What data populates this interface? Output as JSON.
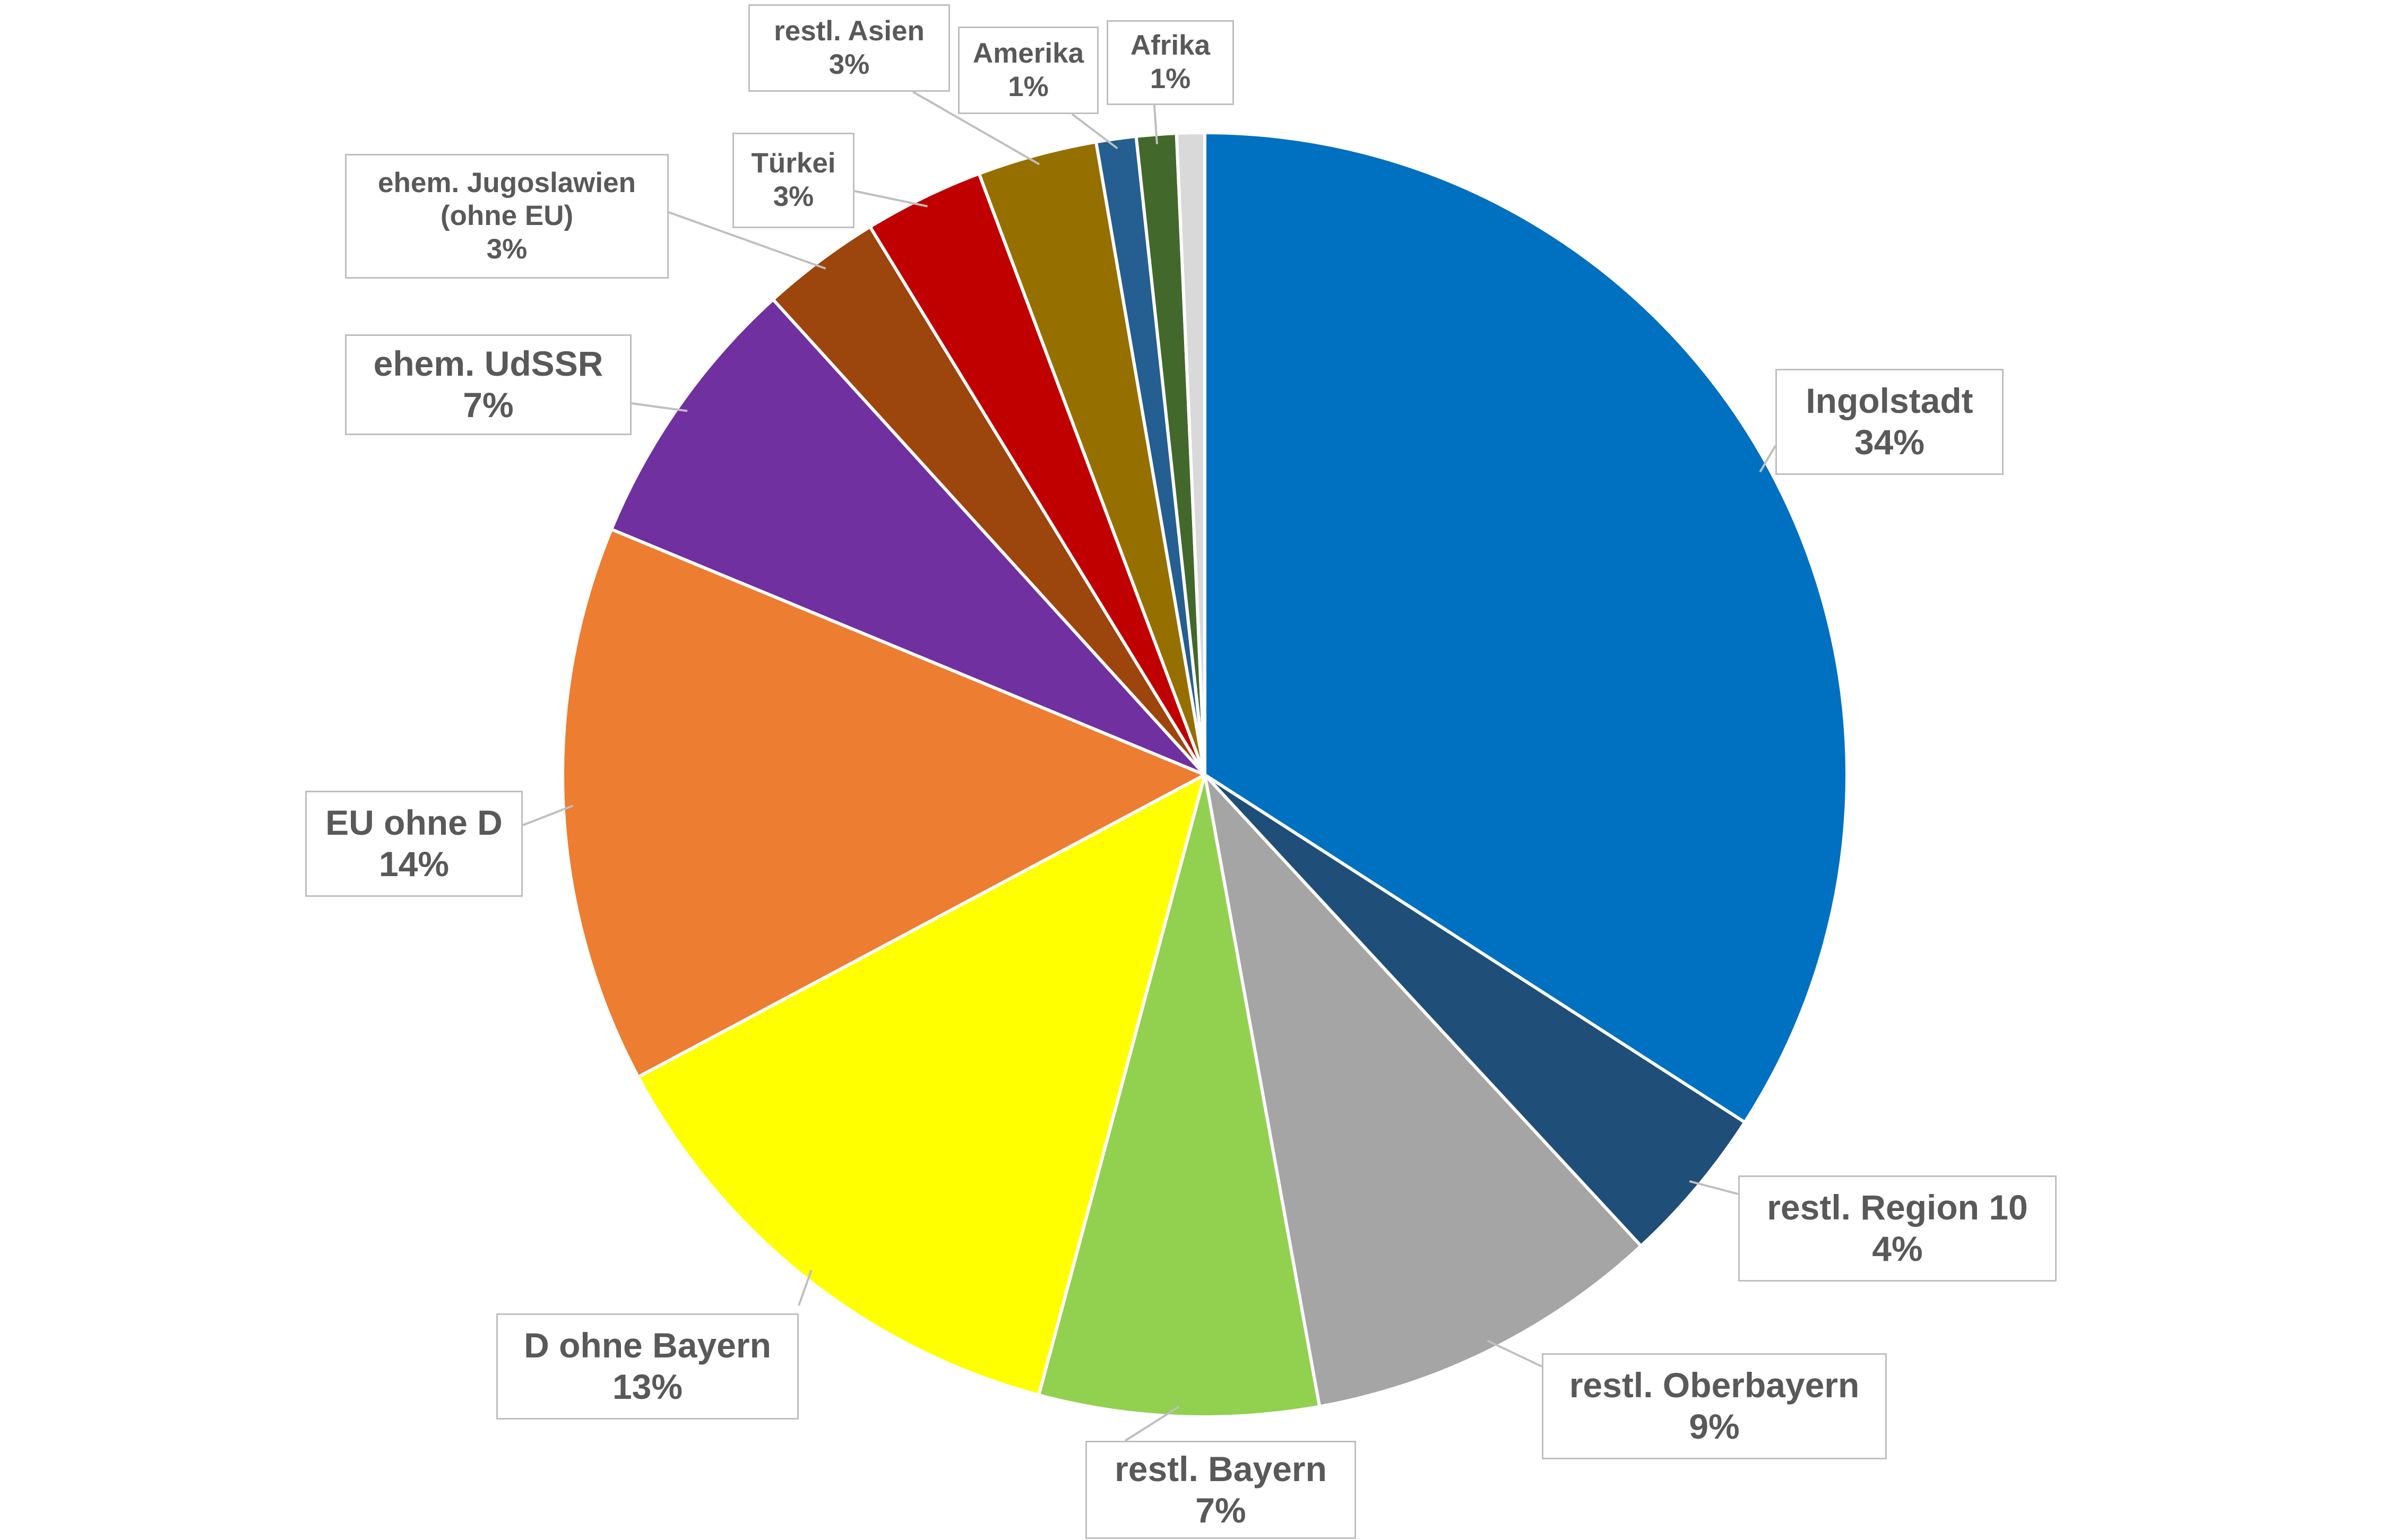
{
  "chart_data": {
    "type": "pie",
    "start_angle_deg": 0,
    "direction": "clockwise",
    "slices": [
      {
        "id": "ingolstadt",
        "name": "Ingolstadt",
        "value": 34,
        "label": "34%",
        "color": "#0070C0"
      },
      {
        "id": "restl-region-10",
        "name": "restl. Region 10",
        "value": 4,
        "label": "4%",
        "color": "#1F4E79"
      },
      {
        "id": "restl-oberbayern",
        "name": "restl. Oberbayern",
        "value": 9,
        "label": "9%",
        "color": "#A5A5A5"
      },
      {
        "id": "restl-bayern",
        "name": "restl. Bayern",
        "value": 7,
        "label": "7%",
        "color": "#92D050"
      },
      {
        "id": "d-ohne-bayern",
        "name": "D ohne Bayern",
        "value": 13,
        "label": "13%",
        "color": "#FFFF00"
      },
      {
        "id": "eu-ohne-d",
        "name": "EU ohne D",
        "value": 14,
        "label": "14%",
        "color": "#ED7D31"
      },
      {
        "id": "ehem-udssr",
        "name": "ehem. UdSSR",
        "value": 7,
        "label": "7%",
        "color": "#7030A0"
      },
      {
        "id": "ehem-jugoslawien",
        "name": "ehem. Jugoslawien\n(ohne EU)",
        "value": 3,
        "label": "3%",
        "color": "#9C450C"
      },
      {
        "id": "tuerkei",
        "name": "Türkei",
        "value": 3,
        "label": "3%",
        "color": "#C00000"
      },
      {
        "id": "restl-asien",
        "name": "restl. Asien",
        "value": 3,
        "label": "3%",
        "color": "#957000"
      },
      {
        "id": "amerika",
        "name": "Amerika",
        "value": 1,
        "label": "1%",
        "color": "#255E91"
      },
      {
        "id": "afrika",
        "name": "Afrika",
        "value": 1,
        "label": "1%",
        "color": "#43682B"
      },
      {
        "id": "sonstige",
        "name": "",
        "value": 0.7,
        "label": "",
        "color": "#D9D9D9"
      }
    ],
    "title": "",
    "legend": "none",
    "label_style": "callout"
  },
  "colors": {
    "slice_border": "#ffffff",
    "label_border": "#bfbfbf",
    "label_text": "#595959",
    "leader_line": "#bfbfbf"
  }
}
